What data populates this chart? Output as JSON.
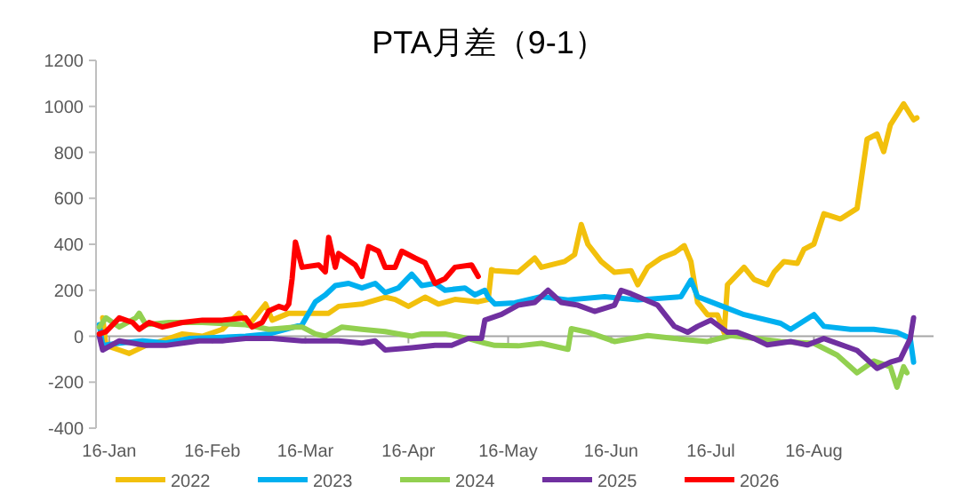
{
  "chart_data": {
    "type": "line",
    "title": "PTA月差（9-1）",
    "xlim": [
      "--01-12",
      "--09-21"
    ],
    "xticks": [
      {
        "value": "--01-16",
        "label": "16-Jan"
      },
      {
        "value": "--02-16",
        "label": "16-Feb"
      },
      {
        "value": "--03-16",
        "label": "16-Mar"
      },
      {
        "value": "--04-16",
        "label": "16-Apr"
      },
      {
        "value": "--05-16",
        "label": "16-May"
      },
      {
        "value": "--06-16",
        "label": "16-Jun"
      },
      {
        "value": "--07-16",
        "label": "16-Jul"
      },
      {
        "value": "--08-16",
        "label": "16-Aug"
      }
    ],
    "ylim": [
      -400,
      1200
    ],
    "yticks": [
      -400,
      -200,
      0,
      200,
      400,
      600,
      800,
      1000,
      1200
    ],
    "legend": "bottom",
    "line_style": "solid",
    "marker": "none",
    "series": [
      {
        "name": "2022",
        "color": "#f2c00c",
        "x": [
          "--01-14",
          "--01-15",
          "--01-19",
          "--01-22",
          "--01-27",
          "--02-01",
          "--02-07",
          "--02-13",
          "--02-19",
          "--02-24",
          "--02-27",
          "--03-04",
          "--03-06",
          "--03-11",
          "--03-16",
          "--03-23",
          "--03-26",
          "--04-02",
          "--04-09",
          "--04-12",
          "--04-16",
          "--04-21",
          "--04-25",
          "--04-30",
          "--05-07",
          "--05-10",
          "--05-11",
          "--05-12",
          "--05-19",
          "--05-24",
          "--05-26",
          "--06-02",
          "--06-05",
          "--06-07",
          "--06-09",
          "--06-13",
          "--06-17",
          "--06-22",
          "--06-24",
          "--06-27",
          "--07-01",
          "--07-05",
          "--07-08",
          "--07-10",
          "--07-12",
          "--07-15",
          "--07-18",
          "--07-20",
          "--07-21",
          "--07-26",
          "--07-29",
          "--08-02",
          "--08-04",
          "--08-07",
          "--08-11",
          "--08-13",
          "--08-16",
          "--08-19",
          "--08-24",
          "--08-29",
          "--09-01",
          "--09-04",
          "--09-06",
          "--09-08",
          "--09-12",
          "--09-15",
          "--09-16"
        ],
        "values": [
          80,
          -40,
          -60,
          -75,
          -40,
          -20,
          10,
          0,
          30,
          100,
          50,
          140,
          70,
          100,
          100,
          100,
          130,
          140,
          170,
          160,
          130,
          170,
          140,
          160,
          150,
          160,
          290,
          285,
          278,
          340,
          300,
          325,
          355,
          486,
          400,
          325,
          278,
          285,
          224,
          300,
          340,
          363,
          394,
          325,
          147,
          93,
          93,
          15,
          224,
          300,
          247,
          224,
          278,
          325,
          317,
          378,
          401,
          533,
          510,
          556,
          857,
          880,
          803,
          919,
          1011,
          942,
          950
        ]
      },
      {
        "name": "2023",
        "color": "#00b0f0",
        "x": [
          "--01-13",
          "--01-14",
          "--01-19",
          "--01-26",
          "--02-02",
          "--02-09",
          "--02-19",
          "--02-26",
          "--03-05",
          "--03-10",
          "--03-15",
          "--03-19",
          "--03-22",
          "--03-25",
          "--03-29",
          "--04-02",
          "--04-06",
          "--04-09",
          "--04-13",
          "--04-17",
          "--04-20",
          "--04-24",
          "--04-27",
          "--05-03",
          "--05-06",
          "--05-09",
          "--05-10",
          "--05-12",
          "--05-18",
          "--05-26",
          "--06-03",
          "--06-14",
          "--06-24",
          "--07-07",
          "--07-10",
          "--07-12",
          "--07-19",
          "--07-26",
          "--08-06",
          "--08-09",
          "--08-16",
          "--08-19",
          "--08-27",
          "--09-03",
          "--09-10",
          "--09-14",
          "--09-15"
        ],
        "values": [
          50,
          -40,
          -30,
          -20,
          -30,
          -10,
          -5,
          0,
          10,
          30,
          50,
          150,
          180,
          220,
          230,
          210,
          230,
          190,
          210,
          270,
          220,
          230,
          200,
          210,
          180,
          200,
          170,
          140,
          145,
          172,
          158,
          172,
          158,
          172,
          244,
          172,
          133,
          94,
          56,
          30,
          94,
          43,
          30,
          30,
          17,
          -10,
          -113
        ]
      },
      {
        "name": "2024",
        "color": "#92d050",
        "x": [
          "--01-13",
          "--01-15",
          "--01-19",
          "--01-24",
          "--01-25",
          "--01-27",
          "--02-03",
          "--02-13",
          "--02-26",
          "--03-05",
          "--03-13",
          "--03-15",
          "--03-19",
          "--03-22",
          "--03-27",
          "--04-02",
          "--04-09",
          "--04-17",
          "--04-20",
          "--04-27",
          "--05-04",
          "--05-09",
          "--05-12",
          "--05-19",
          "--05-26",
          "--06-03",
          "--06-04",
          "--06-09",
          "--06-17",
          "--06-27",
          "--07-05",
          "--07-15",
          "--07-22",
          "--08-06",
          "--08-16",
          "--08-23",
          "--08-29",
          "--09-03",
          "--09-08",
          "--09-10",
          "--09-12",
          "--09-13"
        ],
        "values": [
          40,
          80,
          40,
          80,
          100,
          50,
          60,
          60,
          50,
          30,
          40,
          40,
          10,
          0,
          40,
          30,
          20,
          0,
          10,
          10,
          -10,
          -30,
          -40,
          -42,
          -31,
          -57,
          33,
          18,
          -23,
          3,
          -10,
          -23,
          3,
          -23,
          -31,
          -82,
          -159,
          -108,
          -133,
          -222,
          -133,
          -159
        ]
      },
      {
        "name": "2025",
        "color": "#7030a0",
        "x": [
          "--01-13",
          "--01-14",
          "--01-19",
          "--01-27",
          "--02-02",
          "--02-12",
          "--02-19",
          "--02-26",
          "--03-06",
          "--03-15",
          "--03-26",
          "--04-02",
          "--04-06",
          "--04-09",
          "--04-17",
          "--04-24",
          "--04-29",
          "--05-04",
          "--05-08",
          "--05-09",
          "--05-14",
          "--05-19",
          "--05-24",
          "--05-28",
          "--06-01",
          "--06-06",
          "--06-11",
          "--06-17",
          "--06-19",
          "--06-22",
          "--06-30",
          "--07-05",
          "--07-09",
          "--07-12",
          "--07-16",
          "--07-21",
          "--07-24",
          "--07-29",
          "--08-02",
          "--08-09",
          "--08-14",
          "--08-19",
          "--08-29",
          "--09-04",
          "--09-08",
          "--09-11",
          "--09-14",
          "--09-15"
        ],
        "values": [
          0,
          -60,
          -20,
          -40,
          -40,
          -20,
          -20,
          -10,
          -10,
          -20,
          -20,
          -30,
          -20,
          -60,
          -50,
          -40,
          -40,
          -10,
          -10,
          70,
          95,
          135,
          147,
          200,
          147,
          135,
          108,
          135,
          200,
          185,
          135,
          43,
          17,
          43,
          70,
          17,
          17,
          -10,
          -38,
          -23,
          -38,
          -10,
          -62,
          -140,
          -113,
          -100,
          -10,
          80
        ]
      },
      {
        "name": "2026",
        "color": "#ff0000",
        "x": [
          "--01-13",
          "--01-15",
          "--01-19",
          "--01-23",
          "--01-25",
          "--01-28",
          "--02-01",
          "--02-07",
          "--02-13",
          "--02-19",
          "--02-26",
          "--02-28",
          "--03-03",
          "--03-05",
          "--03-08",
          "--03-10",
          "--03-11",
          "--03-12",
          "--03-13",
          "--03-15",
          "--03-20",
          "--03-22",
          "--03-23",
          "--03-25",
          "--03-26",
          "--03-31",
          "--04-02",
          "--04-04",
          "--04-07",
          "--04-09",
          "--04-12",
          "--04-14",
          "--04-18",
          "--04-21",
          "--04-24",
          "--04-27",
          "--04-30",
          "--05-05",
          "--05-07"
        ],
        "values": [
          10,
          20,
          80,
          60,
          30,
          60,
          40,
          60,
          70,
          70,
          80,
          40,
          60,
          110,
          130,
          120,
          140,
          250,
          410,
          300,
          310,
          280,
          430,
          300,
          360,
          310,
          260,
          390,
          370,
          300,
          300,
          370,
          340,
          320,
          230,
          250,
          300,
          310,
          260
        ]
      }
    ]
  }
}
